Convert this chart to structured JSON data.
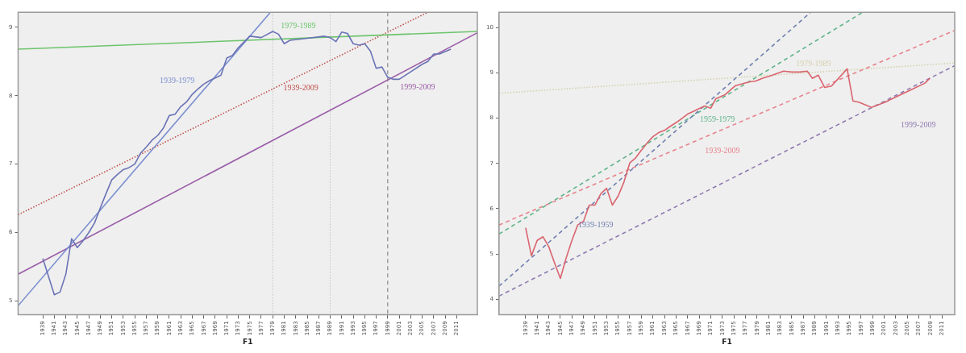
{
  "chart_data": [
    {
      "type": "line",
      "xlabel": "F1",
      "xlim": [
        1934.7,
        2014.6
      ],
      "ylim": [
        4.8,
        9.22
      ],
      "xticks": [
        1939,
        1941,
        1943,
        1945,
        1947,
        1949,
        1951,
        1953,
        1955,
        1957,
        1959,
        1961,
        1963,
        1965,
        1967,
        1969,
        1971,
        1973,
        1975,
        1977,
        1979,
        1981,
        1983,
        1985,
        1987,
        1989,
        1991,
        1993,
        1995,
        1997,
        1999,
        2001,
        2003,
        2005,
        2007,
        2009,
        2011
      ],
      "yticks": [
        5,
        6,
        7,
        8,
        9
      ],
      "marker": "none",
      "series": [
        {
          "color": "#6a73b5",
          "line_style": "solid",
          "x": [
            1939,
            1941,
            1942,
            1943,
            1944,
            1945,
            1946,
            1947,
            1948,
            1949,
            1950,
            1951,
            1952,
            1953,
            1954,
            1955,
            1956,
            1957,
            1958,
            1959,
            1960,
            1961,
            1962,
            1963,
            1964,
            1965,
            1966,
            1967,
            1968,
            1969,
            1970,
            1971,
            1972,
            1973,
            1975,
            1977,
            1979,
            1980,
            1981,
            1982,
            1985,
            1988,
            1989,
            1990,
            1991,
            1992,
            1993,
            1994,
            1995,
            1996,
            1997,
            1998,
            1999,
            2000,
            2001,
            2003,
            2005,
            2006,
            2007,
            2008,
            2010
          ],
          "values": [
            5.62,
            5.09,
            5.13,
            5.39,
            5.91,
            5.78,
            5.88,
            6.0,
            6.14,
            6.36,
            6.57,
            6.77,
            6.85,
            6.92,
            6.95,
            7.0,
            7.16,
            7.25,
            7.35,
            7.42,
            7.53,
            7.71,
            7.73,
            7.84,
            7.91,
            8.02,
            8.1,
            8.17,
            8.22,
            8.26,
            8.3,
            8.55,
            8.59,
            8.7,
            8.87,
            8.85,
            8.94,
            8.9,
            8.76,
            8.81,
            8.84,
            8.87,
            8.85,
            8.79,
            8.93,
            8.91,
            8.76,
            8.74,
            8.76,
            8.65,
            8.4,
            8.42,
            8.27,
            8.24,
            8.24,
            8.35,
            8.46,
            8.5,
            8.61,
            8.61,
            8.68
          ]
        },
        {
          "name": "1939-1979",
          "color": "#7b8fd0",
          "line_style": "solid",
          "x": [
            1934.7,
            1978.6
          ],
          "values": [
            4.93,
            9.22
          ]
        },
        {
          "name": "1979-1989",
          "color": "#6cc46c",
          "line_style": "solid",
          "x": [
            1934.7,
            2014.6
          ],
          "values": [
            8.68,
            8.94
          ]
        },
        {
          "name": "1939-2009",
          "color": "#c0504d",
          "line_style": "dotted",
          "x": [
            1934.7,
            2006
          ],
          "values": [
            6.26,
            9.22
          ]
        },
        {
          "name": "1999-2009",
          "color": "#9a5ea8",
          "line_style": "solid",
          "x": [
            1934.7,
            2014.6
          ],
          "values": [
            5.39,
            8.92
          ]
        }
      ],
      "ref_lines": [
        {
          "axis": "x",
          "value": 1979,
          "color": "#c8c8c8",
          "line_style": "dotted"
        },
        {
          "axis": "x",
          "value": 1989,
          "color": "#c8c8c8",
          "line_style": "dotted"
        },
        {
          "axis": "x",
          "value": 1999,
          "color": "#8a8a8a",
          "line_style": "dashed"
        }
      ]
    },
    {
      "type": "line",
      "xlabel": "F1",
      "xlim": [
        1934.4,
        2013.2
      ],
      "ylim": [
        3.66,
        10.34
      ],
      "xticks": [
        1939,
        1941,
        1943,
        1945,
        1947,
        1949,
        1951,
        1953,
        1955,
        1957,
        1959,
        1961,
        1963,
        1965,
        1967,
        1969,
        1971,
        1973,
        1975,
        1977,
        1979,
        1981,
        1983,
        1985,
        1987,
        1989,
        1991,
        1993,
        1995,
        1997,
        1999,
        2001,
        2003,
        2005,
        2007,
        2009,
        2011
      ],
      "yticks": [
        4,
        5,
        6,
        7,
        8,
        9,
        10
      ],
      "marker": "none",
      "series": [
        {
          "color": "#d9646e",
          "line_style": "solid",
          "x": [
            1939,
            1940,
            1941,
            1942,
            1943,
            1944,
            1945,
            1946,
            1947,
            1948,
            1949,
            1950,
            1951,
            1952,
            1953,
            1954,
            1955,
            1956,
            1957,
            1958,
            1959,
            1960,
            1961,
            1962,
            1963,
            1964,
            1965,
            1966,
            1967,
            1968,
            1969,
            1970,
            1971,
            1971.9,
            1973.5,
            1975.3,
            1977.6,
            1978.8,
            1979.9,
            1981.5,
            1983.6,
            1985,
            1986.4,
            1987.7,
            1988.6,
            1989.6,
            1990.7,
            1991.9,
            1994.6,
            1995.6,
            1996.7,
            1998.8,
            2001.1,
            2002.9,
            2005.7,
            2008,
            2008.9
          ],
          "values": [
            5.58,
            4.96,
            5.3,
            5.38,
            5.16,
            4.8,
            4.46,
            4.91,
            5.3,
            5.64,
            5.72,
            6.08,
            6.08,
            6.33,
            6.45,
            6.08,
            6.28,
            6.59,
            7.01,
            7.12,
            7.29,
            7.45,
            7.59,
            7.68,
            7.73,
            7.82,
            7.9,
            7.99,
            8.09,
            8.15,
            8.21,
            8.27,
            8.22,
            8.43,
            8.52,
            8.72,
            8.8,
            8.82,
            8.88,
            8.94,
            9.04,
            9.02,
            9.02,
            9.04,
            8.88,
            8.95,
            8.68,
            8.71,
            9.09,
            8.38,
            8.35,
            8.24,
            8.35,
            8.46,
            8.63,
            8.77,
            8.88
          ]
        },
        {
          "name": "1939-1959",
          "color": "#6f7fb0",
          "line_style": "dashed",
          "x": [
            1934.4,
            1988.3
          ],
          "values": [
            4.29,
            10.34
          ]
        },
        {
          "name": "1959-1979",
          "color": "#5fb48a",
          "line_style": "dashed",
          "x": [
            1934.4,
            1997.3
          ],
          "values": [
            5.44,
            10.34
          ]
        },
        {
          "name": "1939-2009",
          "color": "#e8838c",
          "line_style": "dashed",
          "x": [
            1934.4,
            2013.2
          ],
          "values": [
            5.64,
            9.94
          ]
        },
        {
          "name": "1979-1989",
          "color": "#d6d2b0",
          "line_style": "dotted",
          "x": [
            1934.4,
            2013.2
          ],
          "values": [
            8.55,
            9.22
          ]
        },
        {
          "name": "1999-2009",
          "color": "#8e7ab0",
          "line_style": "dashed",
          "x": [
            1934.4,
            2013.2
          ],
          "values": [
            4.07,
            9.16
          ]
        }
      ]
    }
  ]
}
